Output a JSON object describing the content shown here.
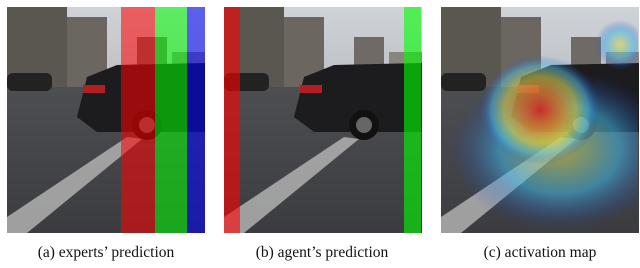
{
  "captions": [
    "(a) experts’ prediction",
    "(b) agent’s prediction",
    "(c) activation map"
  ]
}
